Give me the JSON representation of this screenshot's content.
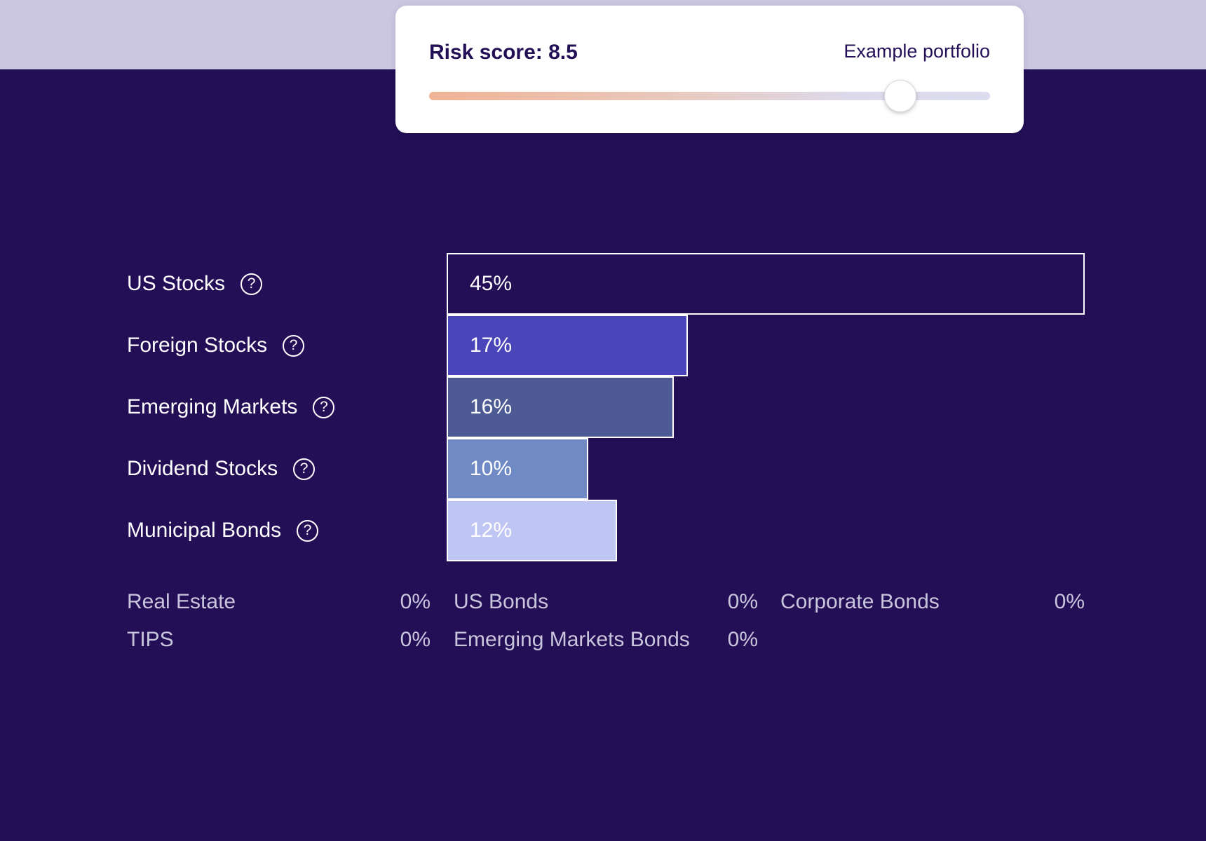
{
  "risk_card": {
    "title": "Risk score: 8.5",
    "link": "Example portfolio",
    "slider_level": 0.84
  },
  "colors": {
    "page_bg": "#230f56",
    "top_band": "#cbc7e3"
  },
  "help_icon_glyph": "?",
  "chart_data": {
    "type": "bar",
    "orientation": "horizontal",
    "categories": [
      "US Stocks",
      "Foreign Stocks",
      "Emerging Markets",
      "Dividend Stocks",
      "Municipal Bonds"
    ],
    "values": [
      45,
      17,
      16,
      10,
      12
    ],
    "value_labels": [
      "45%",
      "17%",
      "16%",
      "10%",
      "12%"
    ],
    "colors": [
      "#230f56",
      "#4a46ba",
      "#4e5a93",
      "#6f8ac5",
      "#c0c6f3"
    ],
    "xlim": [
      0,
      45
    ]
  },
  "zero_allocations": [
    {
      "name": "Real Estate",
      "value": "0%"
    },
    {
      "name": "US Bonds",
      "value": "0%"
    },
    {
      "name": "Corporate Bonds",
      "value": "0%"
    },
    {
      "name": "TIPS",
      "value": "0%"
    },
    {
      "name": "Emerging Markets Bonds",
      "value": "0%"
    }
  ]
}
